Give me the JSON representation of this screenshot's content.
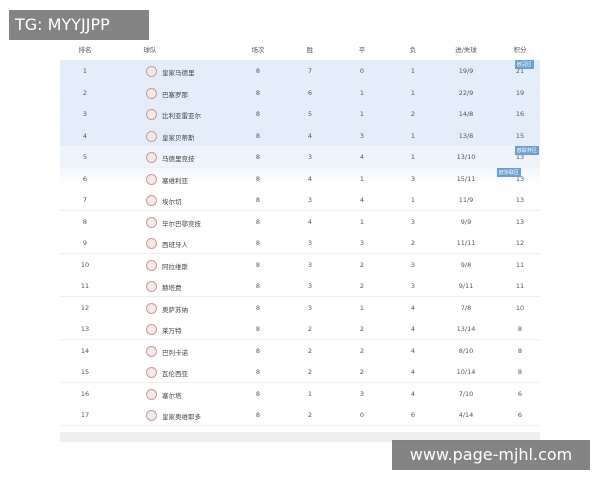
{
  "watermarks": {
    "top": "TG: MYYJJPP",
    "bottom": "www.page-mjhl.com"
  },
  "table": {
    "headers": [
      "排名",
      "球队",
      "场次",
      "胜",
      "平",
      "负",
      "进/失球",
      "积分"
    ],
    "rows": [
      [
        "1",
        "皇家马德里",
        "8",
        "7",
        "0",
        "1",
        "19/9",
        "21"
      ],
      [
        "2",
        "巴塞罗那",
        "8",
        "6",
        "1",
        "1",
        "22/9",
        "19"
      ],
      [
        "3",
        "比利亚雷亚尔",
        "8",
        "5",
        "1",
        "2",
        "14/8",
        "16"
      ],
      [
        "4",
        "皇家贝蒂斯",
        "8",
        "4",
        "3",
        "1",
        "13/8",
        "15"
      ],
      [
        "5",
        "马德里竞技",
        "8",
        "3",
        "4",
        "1",
        "13/10",
        "13"
      ],
      [
        "6",
        "塞维利亚",
        "8",
        "4",
        "1",
        "3",
        "15/11",
        "13"
      ],
      [
        "7",
        "埃尔切",
        "8",
        "3",
        "4",
        "1",
        "11/9",
        "13"
      ],
      [
        "8",
        "毕尔巴鄂竞技",
        "8",
        "4",
        "1",
        "3",
        "9/9",
        "13"
      ],
      [
        "9",
        "西班牙人",
        "8",
        "3",
        "3",
        "2",
        "11/11",
        "12"
      ],
      [
        "10",
        "阿拉维斯",
        "8",
        "3",
        "2",
        "3",
        "9/8",
        "11"
      ],
      [
        "11",
        "赫塔费",
        "8",
        "3",
        "2",
        "3",
        "9/11",
        "11"
      ],
      [
        "12",
        "奥萨苏纳",
        "8",
        "3",
        "1",
        "4",
        "7/8",
        "10"
      ],
      [
        "13",
        "莱万特",
        "8",
        "2",
        "2",
        "4",
        "13/14",
        "8"
      ],
      [
        "14",
        "巴列卡诺",
        "8",
        "2",
        "2",
        "4",
        "8/10",
        "8"
      ],
      [
        "15",
        "瓦伦西亚",
        "8",
        "2",
        "2",
        "4",
        "10/14",
        "8"
      ],
      [
        "16",
        "塞尔塔",
        "8",
        "1",
        "3",
        "4",
        "7/10",
        "6"
      ],
      [
        "17",
        "皇家奥维耶多",
        "8",
        "2",
        "0",
        "6",
        "4/14",
        "6"
      ]
    ],
    "badges": [
      "欧冠区",
      "欧联杯区",
      "欧协联区"
    ]
  }
}
